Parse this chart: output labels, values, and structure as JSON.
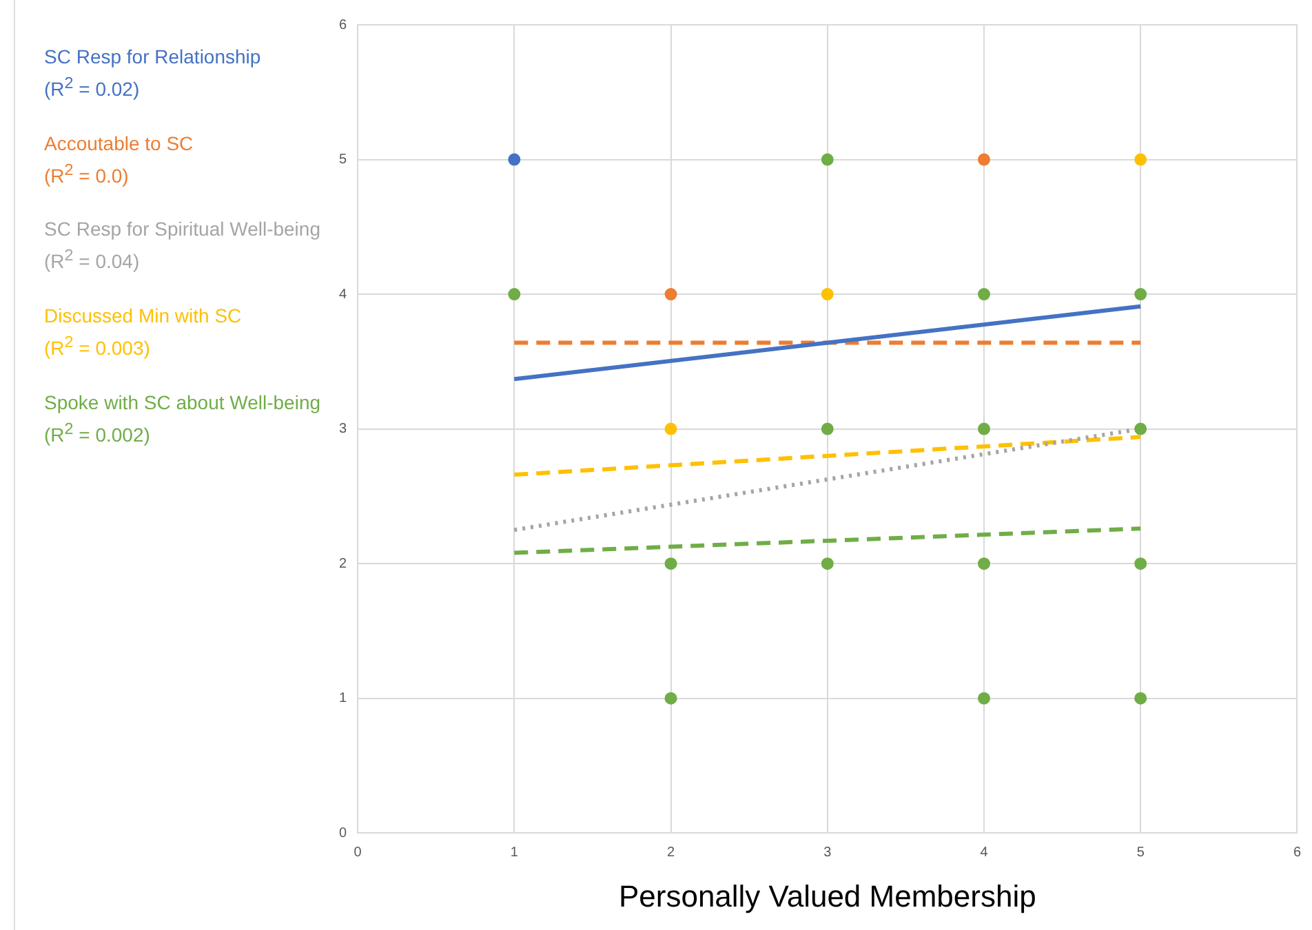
{
  "chart_data": {
    "type": "scatter",
    "xlabel": "Personally Valued Membership",
    "xlim": [
      0,
      6
    ],
    "xticks": [
      0,
      1,
      2,
      3,
      4,
      5,
      6
    ],
    "ylim": [
      0,
      6
    ],
    "yticks": [
      0,
      1,
      2,
      3,
      4,
      5,
      6
    ],
    "grid": true,
    "legend": "left",
    "marker": "circle",
    "series": [
      {
        "type": "scatter",
        "color": "#4472c4",
        "x": [
          1
        ],
        "values": [
          5
        ]
      },
      {
        "type": "scatter",
        "color": "#ed7d31",
        "x": [
          2,
          4
        ],
        "values": [
          4,
          5
        ]
      },
      {
        "type": "scatter",
        "color": "#ffc000",
        "x": [
          2,
          3,
          5
        ],
        "values": [
          3,
          4,
          5
        ]
      },
      {
        "type": "scatter",
        "color": "#70ad47",
        "x": [
          1,
          2,
          2,
          3,
          3,
          3,
          4,
          4,
          4,
          4,
          5,
          5,
          5,
          5
        ],
        "values": [
          4,
          2,
          1,
          5,
          3,
          2,
          4,
          3,
          2,
          1,
          4,
          3,
          2,
          1
        ]
      },
      {
        "type": "line",
        "name": "SC Resp for Relationship\n(R$^{2}$ = 0.02)",
        "color": "#4472c4",
        "line_style": "solid",
        "marker": "none",
        "x": [
          1,
          5
        ],
        "values": [
          3.37,
          3.91
        ]
      },
      {
        "type": "line",
        "name": "Accoutable to SC\n(R$^{2}$ = 0.0)",
        "color": "#ed7d31",
        "line_style": "dashed",
        "marker": "none",
        "x": [
          1,
          5
        ],
        "values": [
          3.64,
          3.64
        ]
      },
      {
        "type": "line",
        "name": "SC Resp for Spiritual Well-being\n(R$^{2}$ = 0.04)",
        "color": "#a5a5a5",
        "line_style": "dotted",
        "marker": "none",
        "x": [
          1,
          5
        ],
        "values": [
          2.25,
          3.0
        ]
      },
      {
        "type": "line",
        "name": "Discussed Min with SC\n(R$^{2}$ = 0.003)",
        "color": "#ffc000",
        "line_style": "dashed",
        "marker": "none",
        "x": [
          1,
          5
        ],
        "values": [
          2.66,
          2.94
        ]
      },
      {
        "type": "line",
        "name": "Spoke with SC about Well-being\n(R$^{2}$ = 0.002)",
        "color": "#70ad47",
        "line_style": "dashed",
        "marker": "none",
        "x": [
          1,
          5
        ],
        "values": [
          2.08,
          2.26
        ]
      }
    ]
  }
}
